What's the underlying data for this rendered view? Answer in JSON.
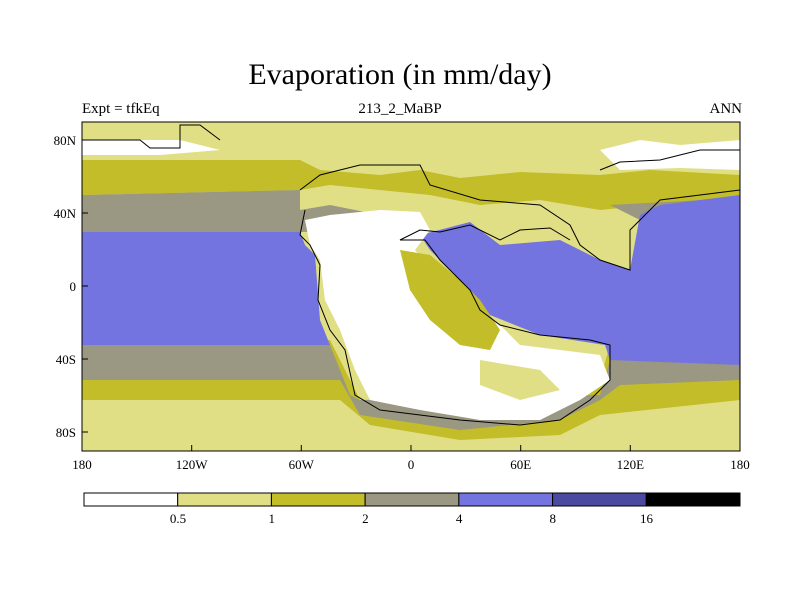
{
  "title": "Evaporation (in mm/day)",
  "left_string": "Expt = tfkEq",
  "center_string": "213_2_MaBP",
  "right_string": "ANN",
  "map": {
    "lon_ticks": [
      "180",
      "120W",
      "60W",
      "0",
      "60E",
      "120E",
      "180"
    ],
    "lat_ticks": [
      "80N",
      "40N",
      "0",
      "40S",
      "80S"
    ]
  },
  "colorbar": {
    "levels": [
      "0.5",
      "1",
      "2",
      "4",
      "8",
      "16"
    ],
    "colors": [
      "#ffffff",
      "#e0df86",
      "#c2bd28",
      "#9a9782",
      "#7474e0",
      "#4a4aa0",
      "#000000"
    ]
  }
}
